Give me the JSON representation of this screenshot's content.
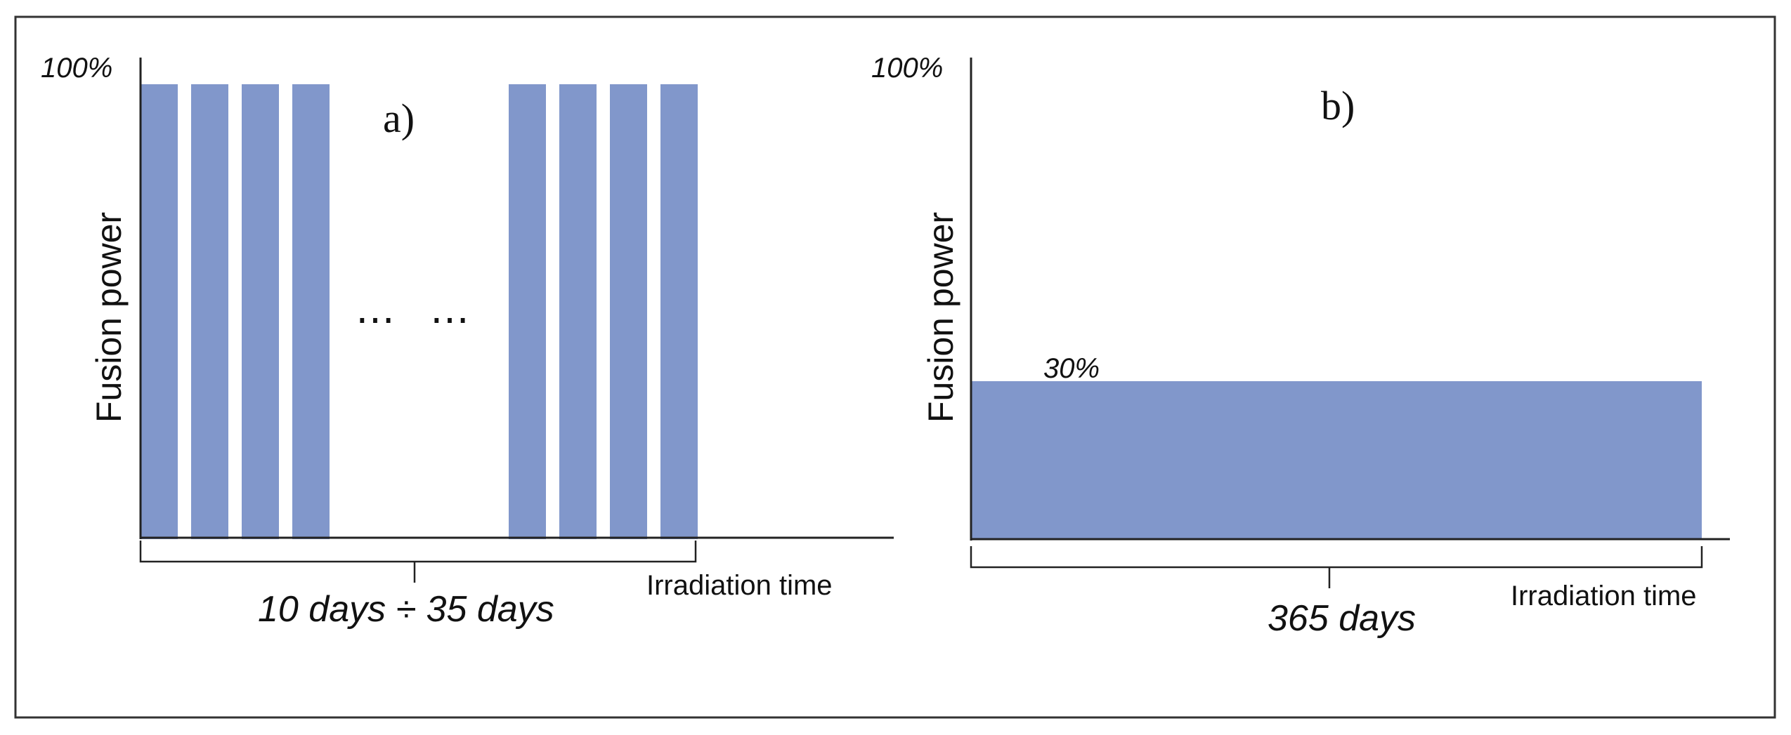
{
  "colors": {
    "frame": "#333333",
    "axis": "#222222",
    "fill": "#8197cb",
    "text": "#111111"
  },
  "panel_a": {
    "panel_label": "a)",
    "y_axis_label": "Fusion power",
    "y_top_label": "100%",
    "x_axis_label": "Irradiation time",
    "span_label": "10 days ÷ 35 days",
    "ellipsis_1": "⋯",
    "ellipsis_2": "⋯",
    "power_level_pct": 100,
    "pulse_groups": 2,
    "pulses_per_group": 4
  },
  "panel_b": {
    "panel_label": "b)",
    "y_axis_label": "Fusion power",
    "y_top_label": "100%",
    "x_axis_label": "Irradiation time",
    "level_label": "30%",
    "span_label": "365 days",
    "power_level_pct": 30
  }
}
